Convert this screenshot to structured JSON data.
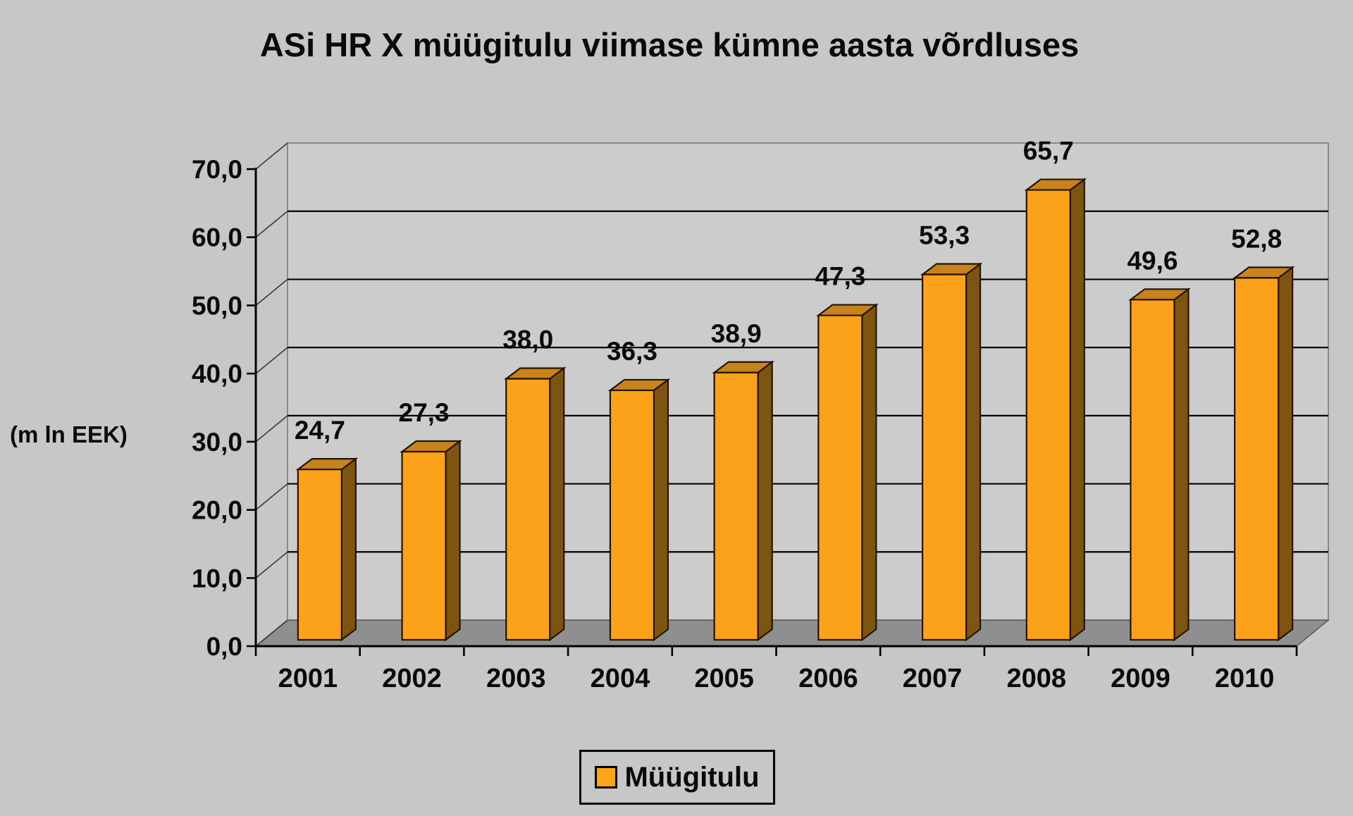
{
  "chart_data": {
    "type": "bar",
    "title": "ASi HR X müügitulu viimase kümne aasta võrdluses",
    "unit_label": "(m ln EEK)",
    "xlabel": "",
    "ylabel": "(m ln EEK)",
    "categories": [
      "2001",
      "2002",
      "2003",
      "2004",
      "2005",
      "2006",
      "2007",
      "2008",
      "2009",
      "2010"
    ],
    "series": [
      {
        "name": "Müügitulu",
        "values": [
          24.7,
          27.3,
          38.0,
          36.3,
          38.9,
          47.3,
          53.3,
          65.7,
          49.6,
          52.8
        ]
      }
    ],
    "value_labels": [
      "24,7",
      "27,3",
      "38,0",
      "36,3",
      "38,9",
      "47,3",
      "53,3",
      "65,7",
      "49,6",
      "52,8"
    ],
    "y_ticks": [
      "0,0",
      "10,0",
      "20,0",
      "30,0",
      "40,0",
      "50,0",
      "60,0",
      "70,0"
    ],
    "ylim": [
      0,
      70
    ],
    "y_step": 10,
    "grid": true,
    "projection": "3d",
    "legend_position": "bottom-center",
    "legend_entries": [
      "Müügitulu"
    ],
    "style": {
      "background": "#c7c7c7",
      "wall": "#cccccc",
      "wall_edge": "#8a8a8a",
      "floor": "#8f8f8f",
      "floor_edge": "#5a5a5a",
      "gridline": "#000000",
      "axis": "#000000",
      "bar_front": "#fca11a",
      "bar_top": "#c8831c",
      "bar_side": "#7d5410",
      "bar_outline": "#241400",
      "legend_marker": "#ffa519",
      "text": "#0a0a0a"
    }
  }
}
